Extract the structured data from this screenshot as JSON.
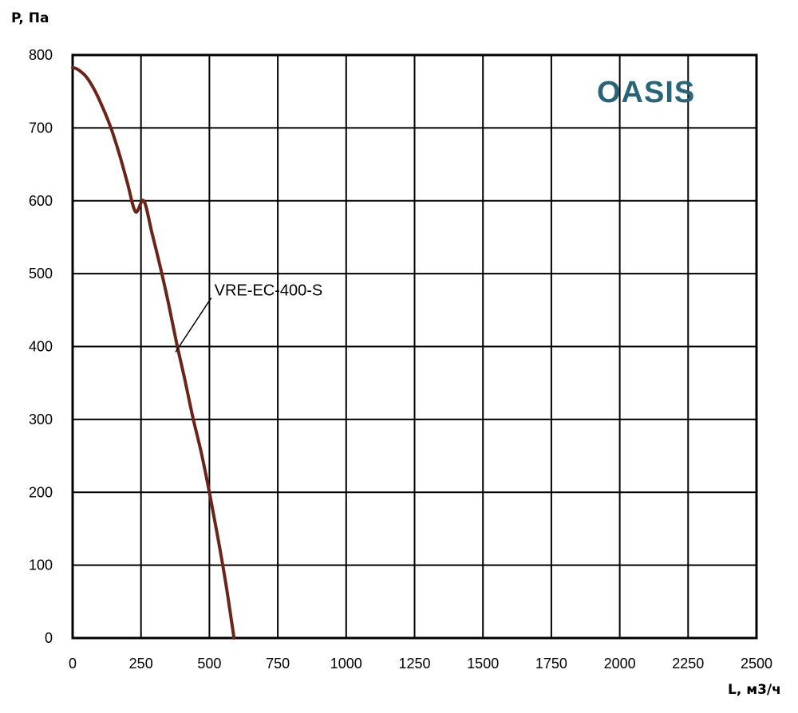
{
  "chart_data": {
    "type": "line",
    "ylabel": "P, Па",
    "xlabel": "L, м3/ч",
    "xlim": [
      0,
      2500
    ],
    "ylim": [
      0,
      800
    ],
    "x_ticks": [
      "0",
      "250",
      "500",
      "750",
      "1000",
      "1250",
      "1500",
      "1750",
      "2000",
      "2250",
      "2500"
    ],
    "y_ticks": [
      "0",
      "100",
      "200",
      "300",
      "400",
      "500",
      "600",
      "700",
      "800"
    ],
    "x_tick_values": [
      0,
      250,
      500,
      750,
      1000,
      1250,
      1500,
      1750,
      2000,
      2250,
      2500
    ],
    "y_tick_values": [
      0,
      100,
      200,
      300,
      400,
      500,
      600,
      700,
      800
    ],
    "grid": true,
    "legend": "none",
    "series": [
      {
        "name": "VRE-EC-400-S",
        "color": "#6b2418",
        "x": [
          0,
          20,
          50,
          80,
          110,
          140,
          170,
          200,
          230,
          260,
          290,
          320,
          350,
          380,
          410,
          440,
          470,
          500,
          530,
          560,
          590
        ],
        "y": [
          783,
          780,
          770,
          752,
          728,
          700,
          665,
          625,
          585,
          600,
          556,
          510,
          460,
          405,
          355,
          302,
          255,
          200,
          140,
          75,
          0
        ]
      }
    ],
    "annotation": {
      "text": "VRE-EC-400-S",
      "point": [
        385,
        410
      ],
      "text_at": [
        530,
        470
      ]
    }
  },
  "logo": {
    "text": "OASIS",
    "color": "#2a6478"
  }
}
